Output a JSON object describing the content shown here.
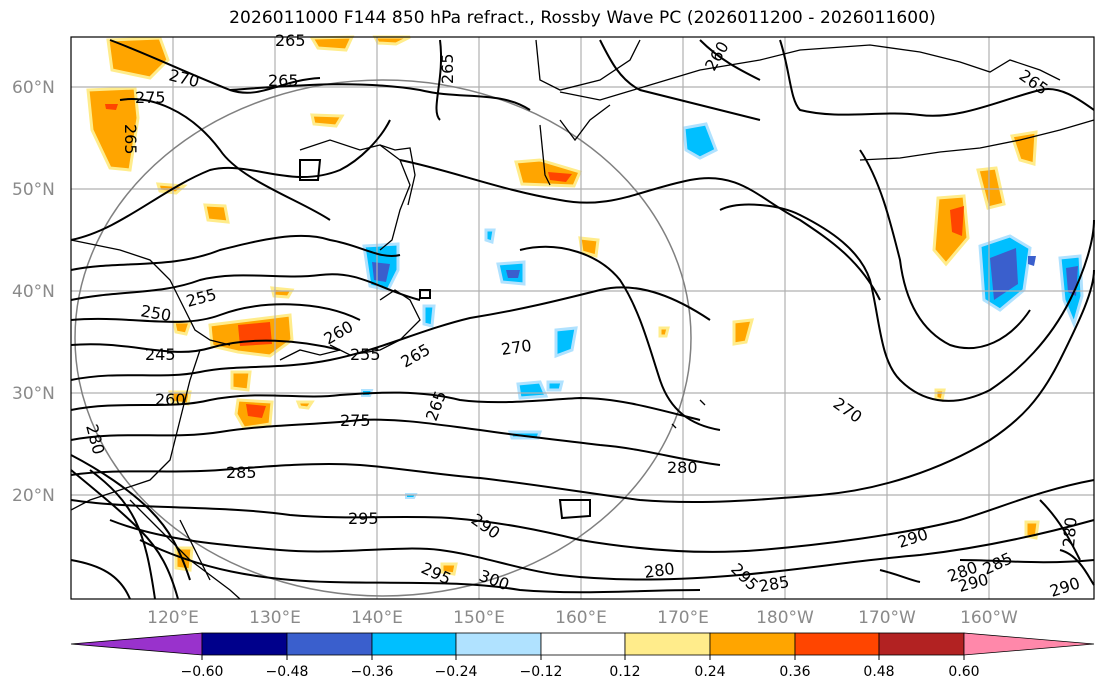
{
  "title": "2026011000 F144 850 hPa refract., Rossby Wave PC (2026011200 - 2026011600)",
  "map": {
    "lat_labels": [
      "60°N",
      "50°N",
      "40°N",
      "30°N",
      "20°N"
    ],
    "lon_labels": [
      "120°E",
      "130°E",
      "140°E",
      "150°E",
      "160°E",
      "170°E",
      "180°W",
      "170°W",
      "160°W"
    ],
    "contour_labels": [
      "265",
      "270",
      "275",
      "265",
      "265",
      "260",
      "265",
      "250",
      "255",
      "245",
      "260",
      "255",
      "265",
      "270",
      "260",
      "275",
      "265",
      "280",
      "285",
      "280",
      "295",
      "290",
      "300",
      "295",
      "280",
      "295",
      "285",
      "280",
      "290",
      "285",
      "290",
      "280",
      "290",
      "265",
      "270"
    ]
  },
  "colorbar": {
    "ticks": [
      "−0.60",
      "−0.48",
      "−0.36",
      "−0.24",
      "−0.12",
      "0.12",
      "0.24",
      "0.36",
      "0.48",
      "0.60"
    ],
    "colors": [
      "#9932CC",
      "#00008B",
      "#3A5FCD",
      "#00BFFF",
      "#B0E2FF",
      "#FFFFFF",
      "#FFEC8B",
      "#FFA500",
      "#FF4500",
      "#B22222",
      "#FF88AA"
    ]
  }
}
